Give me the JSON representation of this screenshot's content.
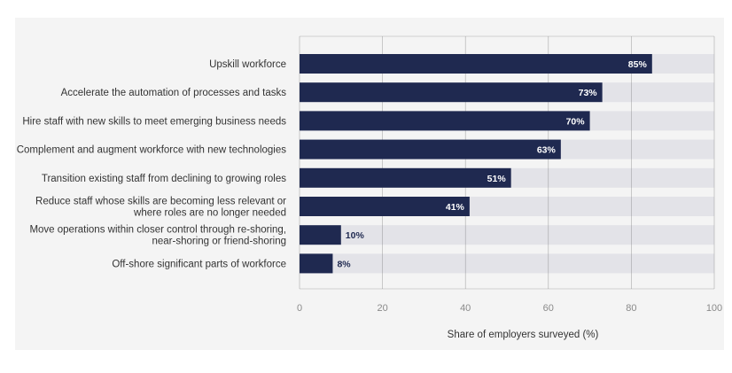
{
  "chart_data": {
    "type": "bar",
    "orientation": "horizontal",
    "categories": [
      [
        "Upskill workforce"
      ],
      [
        "Accelerate the automation of processes and tasks"
      ],
      [
        "Hire staff with new skills to meet emerging business needs"
      ],
      [
        "Complement and augment workforce with new technologies"
      ],
      [
        "Transition existing staff from declining to growing roles"
      ],
      [
        "Reduce staff whose skills are becoming less relevant or",
        "where roles are no longer needed"
      ],
      [
        "Move operations within closer control through re-shoring,",
        "near-shoring or friend-shoring"
      ],
      [
        "Off-shore significant parts of workforce"
      ]
    ],
    "values": [
      85,
      73,
      70,
      63,
      51,
      41,
      10,
      8
    ],
    "value_labels": [
      "85%",
      "73%",
      "70%",
      "63%",
      "51%",
      "41%",
      "10%",
      "8%"
    ],
    "xlabel": "Share of employers surveyed (%)",
    "xlim": [
      0,
      100
    ],
    "xticks": [
      0,
      20,
      40,
      60,
      80,
      100
    ],
    "grid": true,
    "colors": {
      "bar": "#1f2950",
      "track": "#e3e3e8",
      "grid": "#6e6e6e",
      "panel": "#f4f4f4",
      "label_inside": "#ffffff",
      "label_outside": "#1f2950"
    }
  }
}
